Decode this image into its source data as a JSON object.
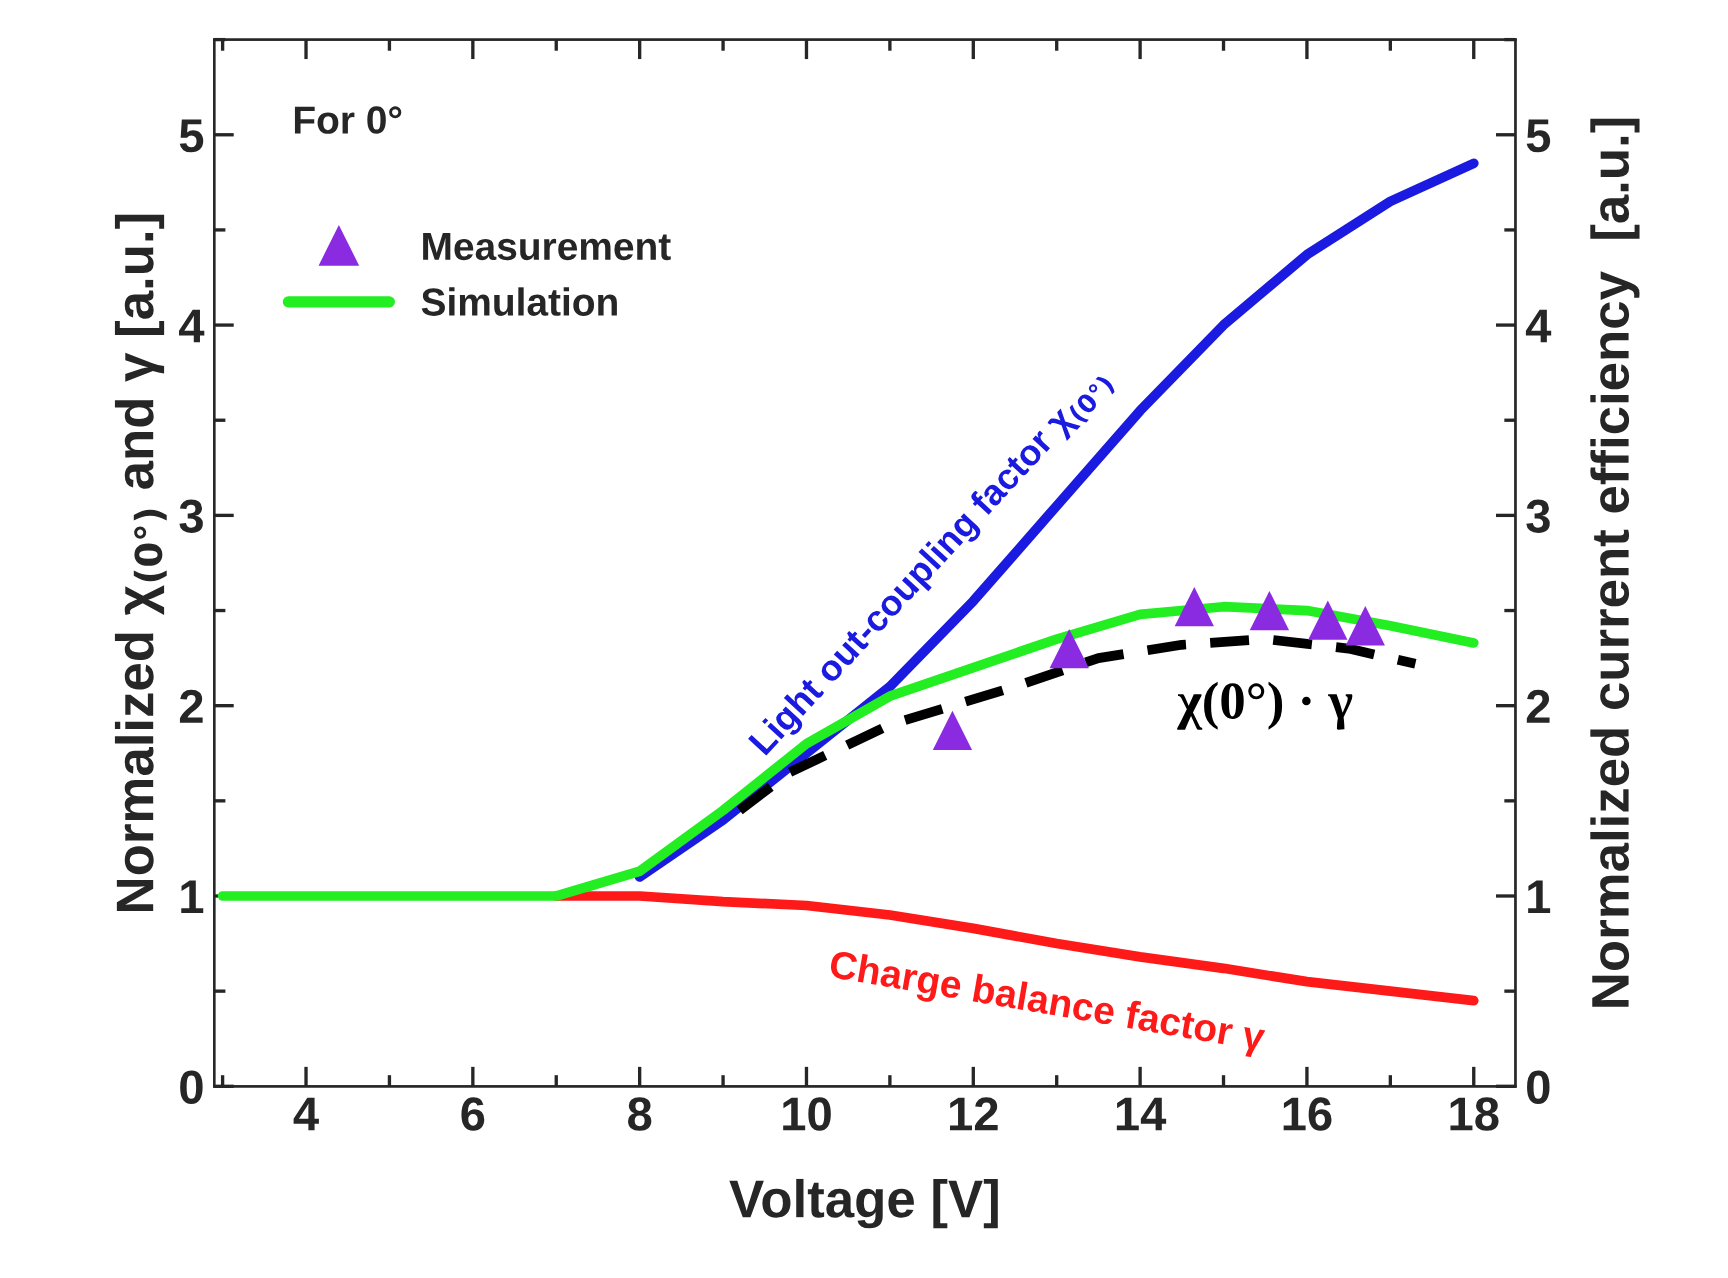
{
  "chart_data": {
    "type": "line",
    "xlabel": "Voltage [V]",
    "ylabel": "Normalized χ$_{(0°)}$ and γ [a.u.]",
    "y2label": "Normalized current efficiency  [a.u.]",
    "xlim": [
      2.9,
      18.5
    ],
    "xticks": [
      4,
      6,
      8,
      10,
      12,
      14,
      16,
      18
    ],
    "ylim": [
      0,
      5.5
    ],
    "yticks": [
      0,
      1,
      2,
      3,
      4,
      5
    ],
    "y2lim": [
      0,
      5.5
    ],
    "y2ticks": [
      0,
      1,
      2,
      3,
      4,
      5
    ],
    "legend": "top left",
    "grid": false,
    "annotations": [
      "For 0°"
    ],
    "series": [
      {
        "name": "Measurement",
        "type": "scatter",
        "marker": "triangle",
        "color": "#8a2be2",
        "x": [
          11.75,
          13.15,
          14.65,
          15.55,
          16.25,
          16.7
        ],
        "values": [
          1.87,
          2.3,
          2.52,
          2.5,
          2.45,
          2.42
        ]
      },
      {
        "name": "Simulation",
        "color": "#22ee22",
        "x": [
          3,
          4,
          5,
          6,
          7,
          8,
          9,
          10,
          11,
          12,
          13,
          14,
          15,
          16,
          17,
          18
        ],
        "values": [
          1,
          1,
          1,
          1,
          1,
          1.13,
          1.45,
          1.8,
          2.05,
          2.2,
          2.35,
          2.48,
          2.52,
          2.5,
          2.42,
          2.33
        ]
      },
      {
        "name": "Light out-coupling factor χ$_{(0°)}$",
        "color": "#1a1ae0",
        "x": [
          8,
          9,
          10,
          11,
          12,
          13,
          14,
          15,
          16,
          17,
          18
        ],
        "values": [
          1.1,
          1.4,
          1.75,
          2.1,
          2.55,
          3.05,
          3.55,
          4.0,
          4.37,
          4.65,
          4.85
        ]
      },
      {
        "name": "Charge balance factor γ",
        "color": "#ff1a1a",
        "x": [
          7,
          8,
          9,
          10,
          11,
          12,
          13,
          14,
          15,
          16,
          17,
          18
        ],
        "values": [
          1,
          1.0,
          0.97,
          0.95,
          0.9,
          0.83,
          0.75,
          0.68,
          0.62,
          0.55,
          0.5,
          0.45
        ]
      },
      {
        "name": "χ(0°) · γ",
        "line_style": "dashed",
        "color": "#000000",
        "x": [
          9.2,
          9.8,
          11,
          12.5,
          13.5,
          14.5,
          15.5,
          16.5,
          17.3
        ],
        "values": [
          1.45,
          1.65,
          1.9,
          2.1,
          2.25,
          2.32,
          2.35,
          2.3,
          2.22
        ]
      }
    ]
  }
}
